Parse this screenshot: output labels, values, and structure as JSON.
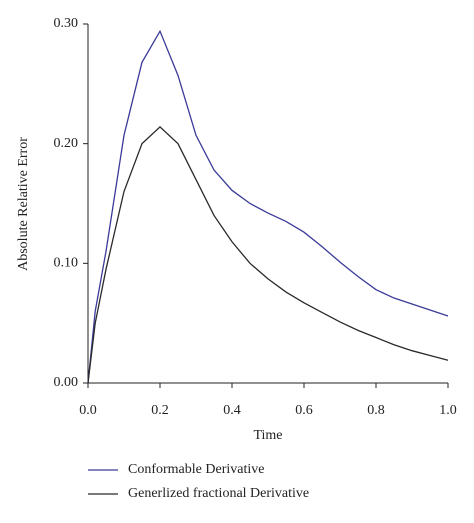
{
  "chart_data": {
    "type": "line",
    "x_label": "Time",
    "y_label": "Absolute Relative Error",
    "x": [
      0,
      0.02,
      0.05,
      0.1,
      0.15,
      0.2,
      0.25,
      0.3,
      0.35,
      0.4,
      0.45,
      0.5,
      0.55,
      0.6,
      0.65,
      0.7,
      0.75,
      0.8,
      0.85,
      0.9,
      0.95,
      1.0
    ],
    "series": [
      {
        "name": "Conformable Derivative",
        "color": "#3a3a98",
        "values": [
          0,
          0.06,
          0.11,
          0.207,
          0.268,
          0.294,
          0.257,
          0.207,
          0.178,
          0.161,
          0.15,
          0.142,
          0.135,
          0.126,
          0.114,
          0.101,
          0.089,
          0.078,
          0.071,
          0.066,
          0.061,
          0.056
        ]
      },
      {
        "name": "Generlized fractional Derivative",
        "color": "#2a2a2a",
        "values": [
          0,
          0.05,
          0.095,
          0.16,
          0.2,
          0.214,
          0.2,
          0.17,
          0.14,
          0.118,
          0.1,
          0.087,
          0.076,
          0.067,
          0.059,
          0.051,
          0.044,
          0.038,
          0.032,
          0.027,
          0.023,
          0.019
        ]
      }
    ],
    "xlim": [
      0,
      1.0
    ],
    "ylim": [
      0,
      0.3
    ],
    "xticks": [
      {
        "value": 0,
        "label": "0.0"
      },
      {
        "value": 0.2,
        "label": "0.2"
      },
      {
        "value": 0.4,
        "label": "0.4"
      },
      {
        "value": 0.6,
        "label": "0.6"
      },
      {
        "value": 0.8,
        "label": "0.8"
      },
      {
        "value": 1.0,
        "label": "1.0"
      }
    ],
    "yticks": [
      {
        "value": 0,
        "label": "0.00"
      },
      {
        "value": 0.1,
        "label": "0.10"
      },
      {
        "value": 0.2,
        "label": "0.20"
      },
      {
        "value": 0.3,
        "label": "0.30"
      }
    ],
    "legend": "bottom-left",
    "grid": false
  }
}
